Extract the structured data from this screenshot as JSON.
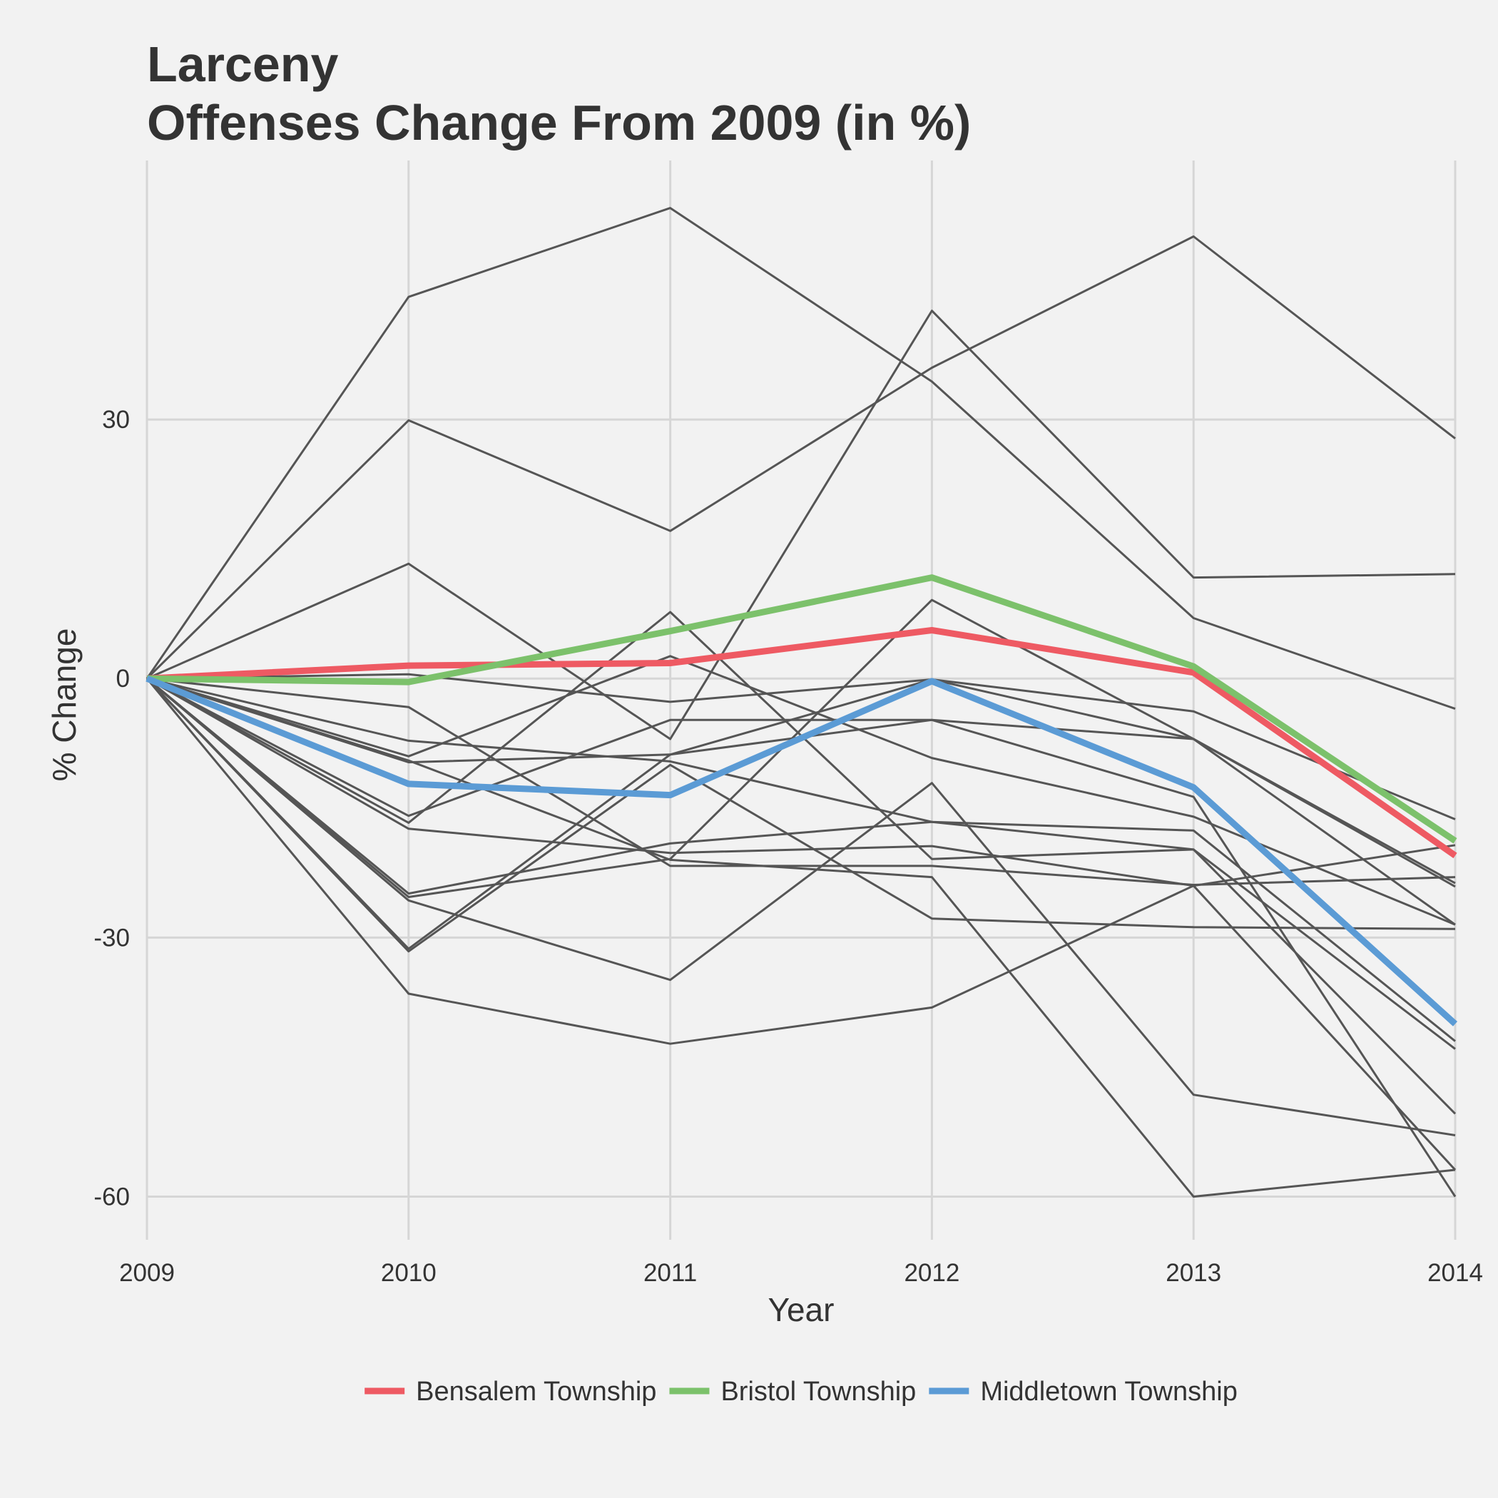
{
  "chart_data": {
    "type": "line",
    "title": [
      "Larceny",
      "Offenses Change From 2009 (in %)"
    ],
    "xlabel": "Year",
    "ylabel": "% Change",
    "x": [
      2009,
      2010,
      2011,
      2012,
      2013,
      2014
    ],
    "xlim": [
      2009,
      2014
    ],
    "ylim": [
      -65,
      60
    ],
    "yticks": [
      30,
      0,
      -30,
      -60
    ],
    "grid": true,
    "legend_position": "bottom",
    "background_series_color": "#555555",
    "background_series": [
      [
        0,
        44.2,
        54.5,
        34.4,
        7.0,
        -3.5
      ],
      [
        0,
        29.9,
        17.1,
        36.0,
        51.2,
        27.8
      ],
      [
        0,
        13.3,
        -7.0,
        42.6,
        11.7,
        12.1
      ],
      [
        0,
        0.5,
        -2.7,
        -0.1,
        -3.8,
        -16.3
      ],
      [
        0,
        -3.3,
        -21.7,
        -21.7,
        -23.9,
        -23.0
      ],
      [
        0,
        -7.2,
        -9.6,
        -16.6,
        -17.6,
        -42.0
      ],
      [
        0,
        -9.0,
        2.6,
        -9.2,
        -16.0,
        -28.5
      ],
      [
        0,
        -9.7,
        -8.8,
        -0.1,
        -7.0,
        -28.5
      ],
      [
        0,
        -15.9,
        -4.8,
        -4.8,
        -7.0,
        -24.1
      ],
      [
        0,
        -16.7,
        7.7,
        -20.9,
        -19.8,
        -50.4
      ],
      [
        0,
        -17.4,
        -20.2,
        -19.4,
        -24.0,
        -19.3
      ],
      [
        0,
        -24.9,
        -19.1,
        -16.6,
        -19.8,
        -42.9
      ],
      [
        0,
        -25.3,
        -20.9,
        9.1,
        -7.0,
        -23.7
      ],
      [
        0,
        -25.7,
        -34.9,
        -12.1,
        -48.2,
        -52.9
      ],
      [
        0,
        -31.3,
        -8.8,
        -4.8,
        -13.7,
        -60.0
      ],
      [
        0,
        -31.6,
        -10.0,
        -27.8,
        -28.8,
        -29.0
      ],
      [
        0,
        -36.5,
        -42.3,
        -38.1,
        -24.0,
        -56.9
      ],
      [
        0,
        -9.5,
        -21.0,
        -23.0,
        -60.0,
        -56.9
      ]
    ],
    "series": [
      {
        "name": "Bensalem Township",
        "color": "#ee5a63",
        "values": [
          0,
          1.5,
          1.8,
          5.6,
          0.7,
          -20.5
        ]
      },
      {
        "name": "Bristol Township",
        "color": "#7cc16b",
        "values": [
          0,
          -0.4,
          5.5,
          11.7,
          1.4,
          -18.8
        ]
      },
      {
        "name": "Middletown Township",
        "color": "#5b9bd5",
        "values": [
          0,
          -12.2,
          -13.5,
          -0.3,
          -12.6,
          -40.0
        ]
      }
    ]
  }
}
